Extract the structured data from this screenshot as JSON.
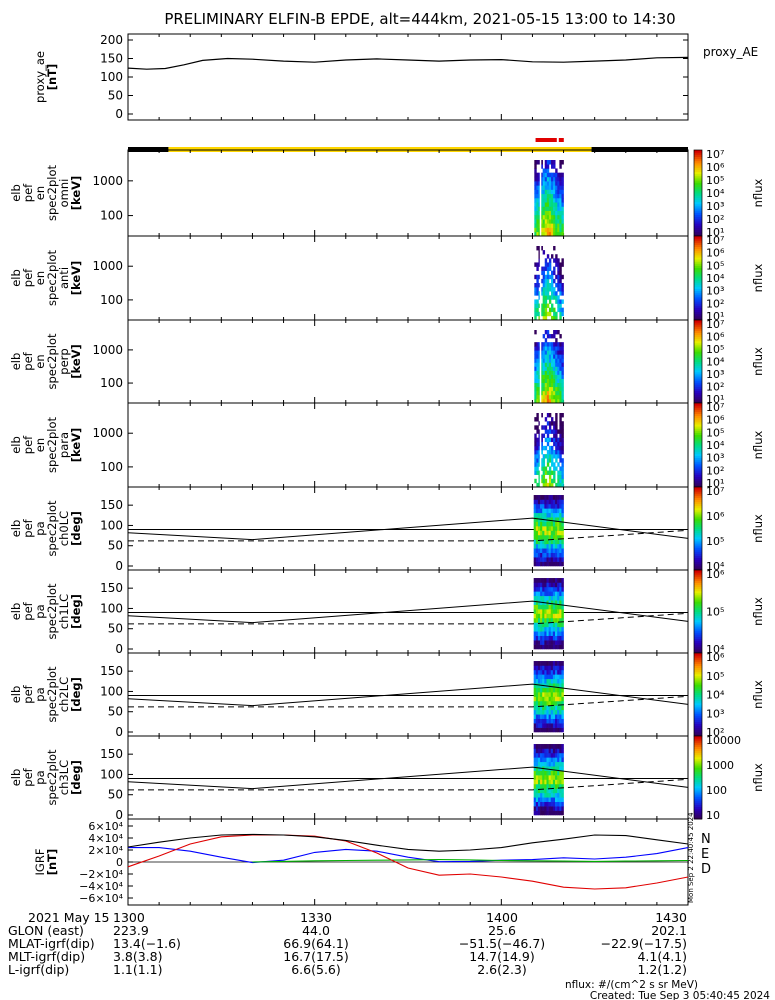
{
  "title": "PRELIMINARY ELFIN-B EPDE, alt=444km, 2021-05-15 13:00 to 14:30",
  "colors": {
    "black": "#000000",
    "yellow": "#ffd700",
    "red": "#e00000",
    "N": "#0000ff",
    "E": "#00b000",
    "D": "#e00000"
  },
  "status_bar": {
    "segments": [
      {
        "color": "black",
        "from_min": 0,
        "to_min": 6.5
      },
      {
        "color": "yellow",
        "from_min": 6.5,
        "to_min": 74.5
      },
      {
        "color": "black",
        "from_min": 74.5,
        "to_min": 90
      }
    ],
    "science_zones": [
      {
        "from_min": 65.5,
        "to_min": 70.2
      }
    ]
  },
  "chart_data": [
    {
      "id": "proxy_ae",
      "type": "line",
      "ylabel": [
        "proxy_ae",
        "[nT]"
      ],
      "right_label": "proxy_AE",
      "ylim": [
        0,
        200
      ],
      "yticks": [
        "0",
        "50",
        "100",
        "150",
        "200"
      ],
      "x": [
        0,
        3,
        6,
        9,
        12,
        16,
        20,
        25,
        30,
        35,
        40,
        45,
        50,
        55,
        60,
        65,
        70,
        75,
        80,
        85,
        90
      ],
      "values": [
        124,
        121,
        123,
        133,
        145,
        150,
        148,
        143,
        140,
        146,
        149,
        146,
        143,
        146,
        147,
        141,
        140,
        143,
        146,
        152,
        153
      ]
    },
    {
      "id": "en_omni",
      "type": "heatmap",
      "scale": "log",
      "ylabel": [
        "elb",
        "pef",
        "en",
        "spec2plot",
        "omni",
        "[keV]"
      ],
      "yticks": [
        "100",
        "1000"
      ],
      "colorbar": {
        "ticks": [
          "10¹",
          "10²",
          "10³",
          "10⁴",
          "10⁵",
          "10⁶",
          "10⁷"
        ],
        "label": "nflux"
      }
    },
    {
      "id": "en_anti",
      "type": "heatmap",
      "scale": "log",
      "ylabel": [
        "elb",
        "pef",
        "en",
        "spec2plot",
        "anti",
        "[keV]"
      ],
      "yticks": [
        "100",
        "1000"
      ],
      "colorbar": {
        "ticks": [
          "10¹",
          "10²",
          "10³",
          "10⁴",
          "10⁵",
          "10⁶",
          "10⁷"
        ],
        "label": "nflux"
      }
    },
    {
      "id": "en_perp",
      "type": "heatmap",
      "scale": "log",
      "ylabel": [
        "elb",
        "pef",
        "en",
        "spec2plot",
        "perp",
        "[keV]"
      ],
      "yticks": [
        "100",
        "1000"
      ],
      "colorbar": {
        "ticks": [
          "10¹",
          "10²",
          "10³",
          "10⁴",
          "10⁵",
          "10⁶",
          "10⁷"
        ],
        "label": "nflux"
      }
    },
    {
      "id": "en_para",
      "type": "heatmap",
      "scale": "log",
      "ylabel": [
        "elb",
        "pef",
        "en",
        "spec2plot",
        "para",
        "[keV]"
      ],
      "yticks": [
        "100",
        "1000"
      ],
      "colorbar": {
        "ticks": [
          "10¹",
          "10²",
          "10³",
          "10⁴",
          "10⁵",
          "10⁶",
          "10⁷"
        ],
        "label": "nflux"
      }
    },
    {
      "id": "pa_ch0",
      "type": "heatmap",
      "ylabel": [
        "elb",
        "pef",
        "pa",
        "spec2plot",
        "ch0LC",
        "[deg]"
      ],
      "yticks": [
        "0",
        "50",
        "100",
        "150"
      ],
      "ylim": [
        0,
        180
      ],
      "lc_x": [
        0,
        20,
        65,
        90
      ],
      "lc_y": [
        82,
        65,
        118,
        68
      ],
      "alc_y": [
        62,
        62,
        62,
        88
      ],
      "colorbar": {
        "ticks": [
          "10⁴",
          "10⁵",
          "10⁶",
          "10⁷"
        ],
        "label": "nflux"
      }
    },
    {
      "id": "pa_ch1",
      "type": "heatmap",
      "ylabel": [
        "elb",
        "pef",
        "pa",
        "spec2plot",
        "ch1LC",
        "[deg]"
      ],
      "yticks": [
        "0",
        "50",
        "100",
        "150"
      ],
      "ylim": [
        0,
        180
      ],
      "lc_x": [
        0,
        20,
        65,
        90
      ],
      "lc_y": [
        82,
        65,
        118,
        68
      ],
      "alc_y": [
        62,
        62,
        62,
        88
      ],
      "colorbar": {
        "ticks": [
          "10⁴",
          "10⁵",
          "10⁶"
        ],
        "label": "nflux"
      }
    },
    {
      "id": "pa_ch2",
      "type": "heatmap",
      "ylabel": [
        "elb",
        "pef",
        "pa",
        "spec2plot",
        "ch2LC",
        "[deg]"
      ],
      "yticks": [
        "0",
        "50",
        "100",
        "150"
      ],
      "ylim": [
        0,
        180
      ],
      "lc_x": [
        0,
        20,
        65,
        90
      ],
      "lc_y": [
        82,
        65,
        118,
        68
      ],
      "alc_y": [
        62,
        62,
        62,
        88
      ],
      "colorbar": {
        "ticks": [
          "10²",
          "10³",
          "10⁴",
          "10⁵",
          "10⁶"
        ],
        "label": "nflux"
      }
    },
    {
      "id": "pa_ch3",
      "type": "heatmap",
      "ylabel": [
        "elb",
        "pef",
        "pa",
        "spec2plot",
        "ch3LC",
        "[deg]"
      ],
      "yticks": [
        "0",
        "50",
        "100",
        "150"
      ],
      "ylim": [
        0,
        180
      ],
      "lc_x": [
        0,
        20,
        65,
        90
      ],
      "lc_y": [
        82,
        65,
        118,
        68
      ],
      "alc_y": [
        62,
        62,
        62,
        88
      ],
      "colorbar": {
        "ticks": [
          "10",
          "100",
          "1000",
          "10000"
        ],
        "label": "nflux"
      }
    },
    {
      "id": "igrf",
      "type": "line",
      "ylabel": [
        "IGRF",
        "[nT]"
      ],
      "ylim": [
        -65000,
        65000
      ],
      "yticks": [
        "−6×10⁴",
        "−4×10⁴",
        "−2×10⁴",
        "0",
        "2×10⁴",
        "4×10⁴",
        "6×10⁴"
      ],
      "x": [
        0,
        5,
        10,
        15,
        20,
        25,
        30,
        35,
        40,
        45,
        50,
        55,
        60,
        65,
        70,
        75,
        80,
        85,
        90
      ],
      "series": [
        {
          "name": "N",
          "color": "N",
          "values": [
            24000,
            24000,
            18000,
            8000,
            -1000,
            3000,
            16000,
            21000,
            18000,
            8000,
            500,
            1000,
            3000,
            4000,
            7000,
            5000,
            8000,
            14000,
            24000
          ]
        },
        {
          "name": "E",
          "color": "E",
          "values": [
            null,
            null,
            null,
            null,
            0,
            1000,
            2000,
            2500,
            3000,
            3500,
            4000,
            3500,
            2500,
            2000,
            1500,
            1000,
            1500,
            2000,
            2500
          ]
        },
        {
          "name": "D",
          "color": "D",
          "values": [
            -8000,
            10000,
            30000,
            42000,
            45000,
            45000,
            43000,
            35000,
            15000,
            -10000,
            -22000,
            -20000,
            -25000,
            -32000,
            -42000,
            -45000,
            -43000,
            -35000,
            -25000
          ]
        },
        {
          "name": "",
          "color": "black",
          "values": [
            25000,
            33000,
            40000,
            45000,
            46000,
            45000,
            42000,
            36000,
            28000,
            21000,
            18000,
            20000,
            24000,
            32000,
            38000,
            45000,
            44000,
            37000,
            30000
          ]
        }
      ],
      "legend": [
        "N",
        "E",
        "D"
      ]
    }
  ],
  "orbit_table": {
    "rows": [
      {
        "label": "2021 May 15",
        "values": [
          "1300",
          "1330",
          "1400",
          "1430"
        ]
      },
      {
        "label": "GLON (east)",
        "values": [
          "223.9",
          "44.0",
          "25.6",
          "202.1"
        ]
      },
      {
        "label": "MLAT-igrf(dip)",
        "values": [
          "13.4(−1.6)",
          "66.9(64.1)",
          "−51.5(−46.7)",
          "−22.9(−17.5)"
        ]
      },
      {
        "label": "MLT-igrf(dip)",
        "values": [
          "3.8(3.8)",
          "16.7(17.5)",
          "14.7(14.9)",
          "4.1(4.1)"
        ]
      },
      {
        "label": "L-igrf(dip)",
        "values": [
          "1.1(1.1)",
          "6.6(5.6)",
          "2.6(2.3)",
          "1.2(1.2)"
        ]
      }
    ]
  },
  "footer": {
    "units": "nflux: #/(cm^2 s sr MeV)",
    "created": "Created: Tue Sep  3 05:40:45 2024"
  },
  "stamp": "Mon Sep  2 22:40:45 2024"
}
